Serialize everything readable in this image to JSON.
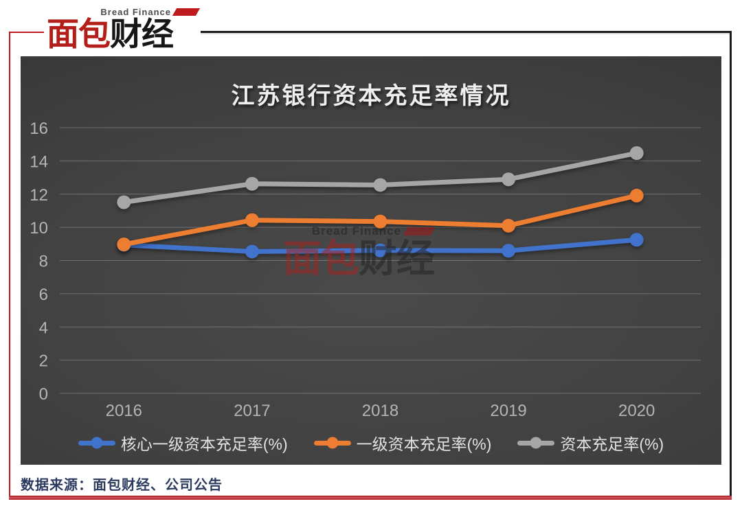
{
  "logo": {
    "subtitle": "Bread Finance",
    "title_red": "面包",
    "title_black": "财经"
  },
  "watermark": {
    "subtitle": "Bread Finance",
    "title_red": "面包",
    "title_black": "财经"
  },
  "footer": {
    "source": "数据来源：面包财经、公司公告"
  },
  "colors": {
    "frame_red": "#C0161D",
    "frame_black": "#1a1a1a",
    "series_blue": "#4173CC",
    "series_orange": "#ED7D31",
    "series_gray": "#A6A6A6",
    "tick_label": "#B5B5B5",
    "title_text": "#EFEFEF"
  },
  "chart_data": {
    "type": "line",
    "title": "江苏银行资本充足率情况",
    "categories": [
      "2016",
      "2017",
      "2018",
      "2019",
      "2020"
    ],
    "series": [
      {
        "name": "核心一级资本充足率(%)",
        "color": "#4173CC",
        "values": [
          8.94,
          8.54,
          8.61,
          8.59,
          9.25
        ]
      },
      {
        "name": "一级资本充足率(%)",
        "color": "#ED7D31",
        "values": [
          8.97,
          10.43,
          10.35,
          10.1,
          11.91
        ]
      },
      {
        "name": "资本充足率(%)",
        "color": "#A6A6A6",
        "values": [
          11.51,
          12.62,
          12.55,
          12.89,
          14.47
        ]
      }
    ],
    "xlabel": "",
    "ylabel": "",
    "ylim": [
      0,
      16
    ],
    "ytick_step": 2,
    "grid": true,
    "legend_position": "bottom"
  }
}
